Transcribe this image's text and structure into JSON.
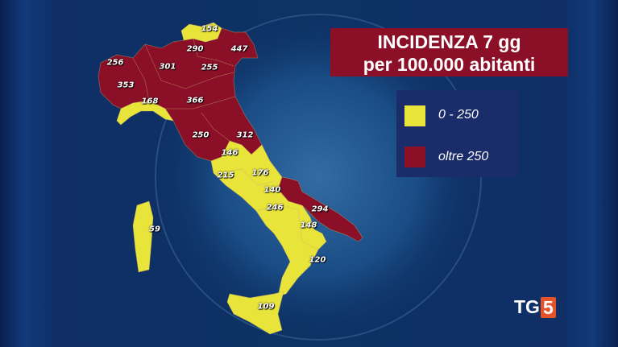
{
  "title": {
    "line1": "INCIDENZA 7 gg",
    "line2": "per 100.000 abitanti"
  },
  "legend": [
    {
      "label": "0 - 250",
      "color": "#e8e43a"
    },
    {
      "label": "oltre 250",
      "color": "#8a0f27"
    }
  ],
  "colors": {
    "low": "#e8e43a",
    "high": "#8a0f27",
    "background": "#0d3264"
  },
  "regions": [
    {
      "value": "154",
      "category": "low"
    },
    {
      "value": "290",
      "category": "high"
    },
    {
      "value": "447",
      "category": "high"
    },
    {
      "value": "256",
      "category": "high"
    },
    {
      "value": "301",
      "category": "high"
    },
    {
      "value": "255",
      "category": "high"
    },
    {
      "value": "353",
      "category": "high"
    },
    {
      "value": "168",
      "category": "low"
    },
    {
      "value": "366",
      "category": "high"
    },
    {
      "value": "250",
      "category": "high"
    },
    {
      "value": "312",
      "category": "high"
    },
    {
      "value": "146",
      "category": "low"
    },
    {
      "value": "215",
      "category": "low"
    },
    {
      "value": "176",
      "category": "low"
    },
    {
      "value": "140",
      "category": "low"
    },
    {
      "value": "246",
      "category": "low"
    },
    {
      "value": "294",
      "category": "high"
    },
    {
      "value": "148",
      "category": "low"
    },
    {
      "value": "59",
      "category": "low"
    },
    {
      "value": "120",
      "category": "low"
    },
    {
      "value": "109",
      "category": "low"
    }
  ],
  "logo": {
    "text": "TG",
    "number": "5"
  }
}
